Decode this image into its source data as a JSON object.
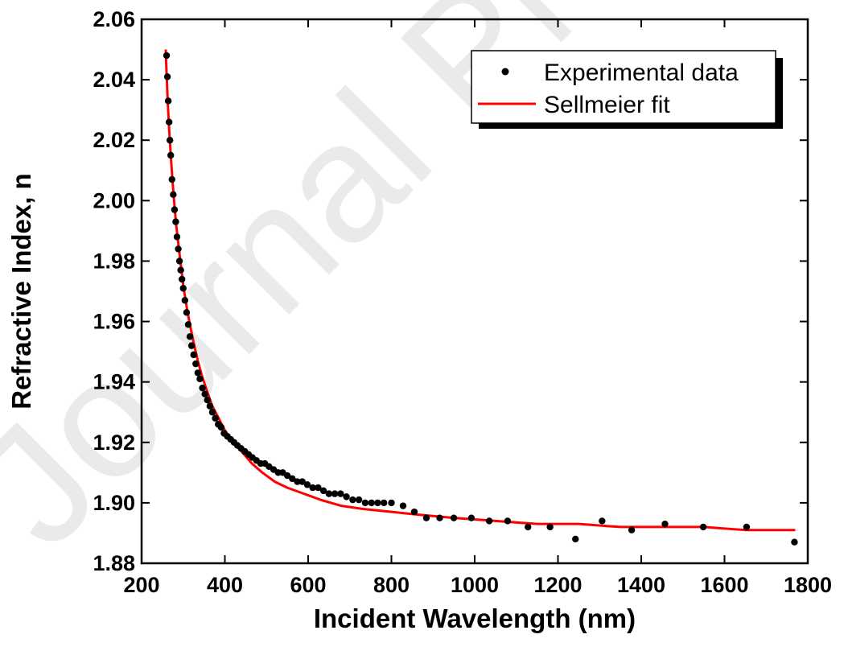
{
  "watermark": "Journal Pre-proof",
  "chart_data": {
    "type": "scatter",
    "xlabel": "Incident Wavelength (nm)",
    "ylabel": "Refractive Index, n",
    "xlim": [
      200,
      1800
    ],
    "ylim": [
      1.88,
      2.06
    ],
    "xticks": [
      200,
      400,
      600,
      800,
      1000,
      1200,
      1400,
      1600,
      1800
    ],
    "yticks": [
      "1.88",
      "1.90",
      "1.92",
      "1.94",
      "1.96",
      "1.98",
      "2.00",
      "2.02",
      "2.04",
      "2.06"
    ],
    "grid": false,
    "legend_position": "top-right",
    "series": [
      {
        "name": "Experimental data",
        "style": "points",
        "color": "#000000",
        "x": [
          260,
          262,
          264,
          266,
          268,
          270,
          273,
          276,
          279,
          282,
          285,
          288,
          291,
          294,
          297,
          300,
          304,
          308,
          312,
          316,
          320,
          325,
          330,
          335,
          340,
          346,
          352,
          358,
          364,
          370,
          377,
          384,
          391,
          398,
          406,
          414,
          422,
          430,
          439,
          448,
          457,
          466,
          476,
          486,
          496,
          506,
          517,
          528,
          539,
          550,
          562,
          574,
          586,
          598,
          611,
          624,
          637,
          650,
          664,
          678,
          692,
          707,
          722,
          737,
          752,
          767,
          782,
          800,
          828,
          855,
          884,
          916,
          950,
          992,
          1035,
          1079,
          1128,
          1181,
          1242,
          1306,
          1377,
          1457,
          1549,
          1653,
          1768
        ],
        "y": [
          2.048,
          2.041,
          2.033,
          2.026,
          2.02,
          2.015,
          2.007,
          2.002,
          1.997,
          1.993,
          1.988,
          1.984,
          1.98,
          1.977,
          1.974,
          1.971,
          1.967,
          1.963,
          1.959,
          1.955,
          1.952,
          1.949,
          1.946,
          1.943,
          1.941,
          1.938,
          1.936,
          1.934,
          1.932,
          1.93,
          1.928,
          1.926,
          1.925,
          1.923,
          1.922,
          1.921,
          1.92,
          1.919,
          1.918,
          1.917,
          1.916,
          1.915,
          1.914,
          1.913,
          1.913,
          1.912,
          1.911,
          1.91,
          1.91,
          1.909,
          1.908,
          1.907,
          1.907,
          1.906,
          1.905,
          1.905,
          1.904,
          1.903,
          1.903,
          1.903,
          1.902,
          1.901,
          1.901,
          1.9,
          1.9,
          1.9,
          1.9,
          1.9,
          1.899,
          1.897,
          1.895,
          1.895,
          1.895,
          1.895,
          1.894,
          1.894,
          1.892,
          1.892,
          1.888,
          1.894,
          1.891,
          1.893,
          1.892,
          1.892,
          1.887
        ]
      },
      {
        "name": "Sellmeier fit",
        "style": "line",
        "color": "#ff0000",
        "x": [
          258,
          260,
          263,
          266,
          270,
          274,
          278,
          283,
          288,
          294,
          300,
          308,
          316,
          325,
          335,
          345,
          357,
          370,
          385,
          400,
          420,
          440,
          465,
          490,
          520,
          550,
          590,
          630,
          680,
          730,
          800,
          870,
          950,
          1050,
          1150,
          1250,
          1350,
          1450,
          1550,
          1650,
          1770
        ],
        "y": [
          2.05,
          2.042,
          2.032,
          2.024,
          2.015,
          2.007,
          2.0,
          1.992,
          1.986,
          1.979,
          1.972,
          1.965,
          1.959,
          1.953,
          1.947,
          1.942,
          1.937,
          1.932,
          1.928,
          1.924,
          1.92,
          1.917,
          1.913,
          1.91,
          1.907,
          1.905,
          1.903,
          1.901,
          1.899,
          1.898,
          1.897,
          1.896,
          1.895,
          1.894,
          1.893,
          1.893,
          1.892,
          1.892,
          1.892,
          1.891,
          1.891
        ]
      }
    ]
  }
}
